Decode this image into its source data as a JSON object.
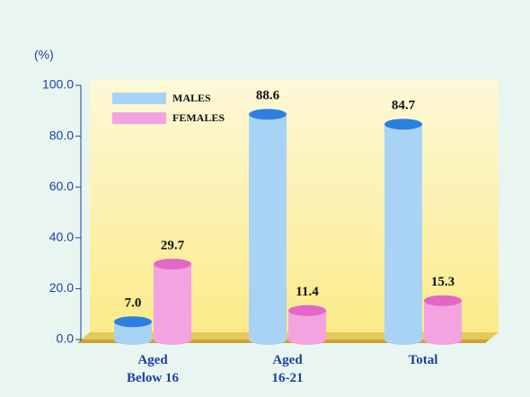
{
  "chart_data": {
    "type": "bar",
    "y_label": "(%)",
    "categories": [
      "Aged\nBelow 16",
      "Aged\n16-21",
      "Total"
    ],
    "series": [
      {
        "name": "MALES",
        "color": "#a9d3f5",
        "cap_color": "#2b7fe3",
        "values": [
          7.0,
          88.6,
          84.7
        ],
        "value_labels": [
          "7.0",
          "88.6",
          "84.7"
        ]
      },
      {
        "name": "FEMALES",
        "color": "#f2a3e0",
        "cap_color": "#e466c9",
        "values": [
          29.7,
          11.4,
          15.3
        ],
        "value_labels": [
          "29.7",
          "11.4",
          "15.3"
        ]
      }
    ],
    "ylim": [
      0,
      100
    ],
    "yticks": [
      {
        "value": 0,
        "label": "0.0"
      },
      {
        "value": 20,
        "label": "20.0"
      },
      {
        "value": 40,
        "label": "40.0"
      },
      {
        "value": 60,
        "label": "60.0"
      },
      {
        "value": 80,
        "label": "80.0"
      },
      {
        "value": 100,
        "label": "100.0"
      }
    ]
  }
}
